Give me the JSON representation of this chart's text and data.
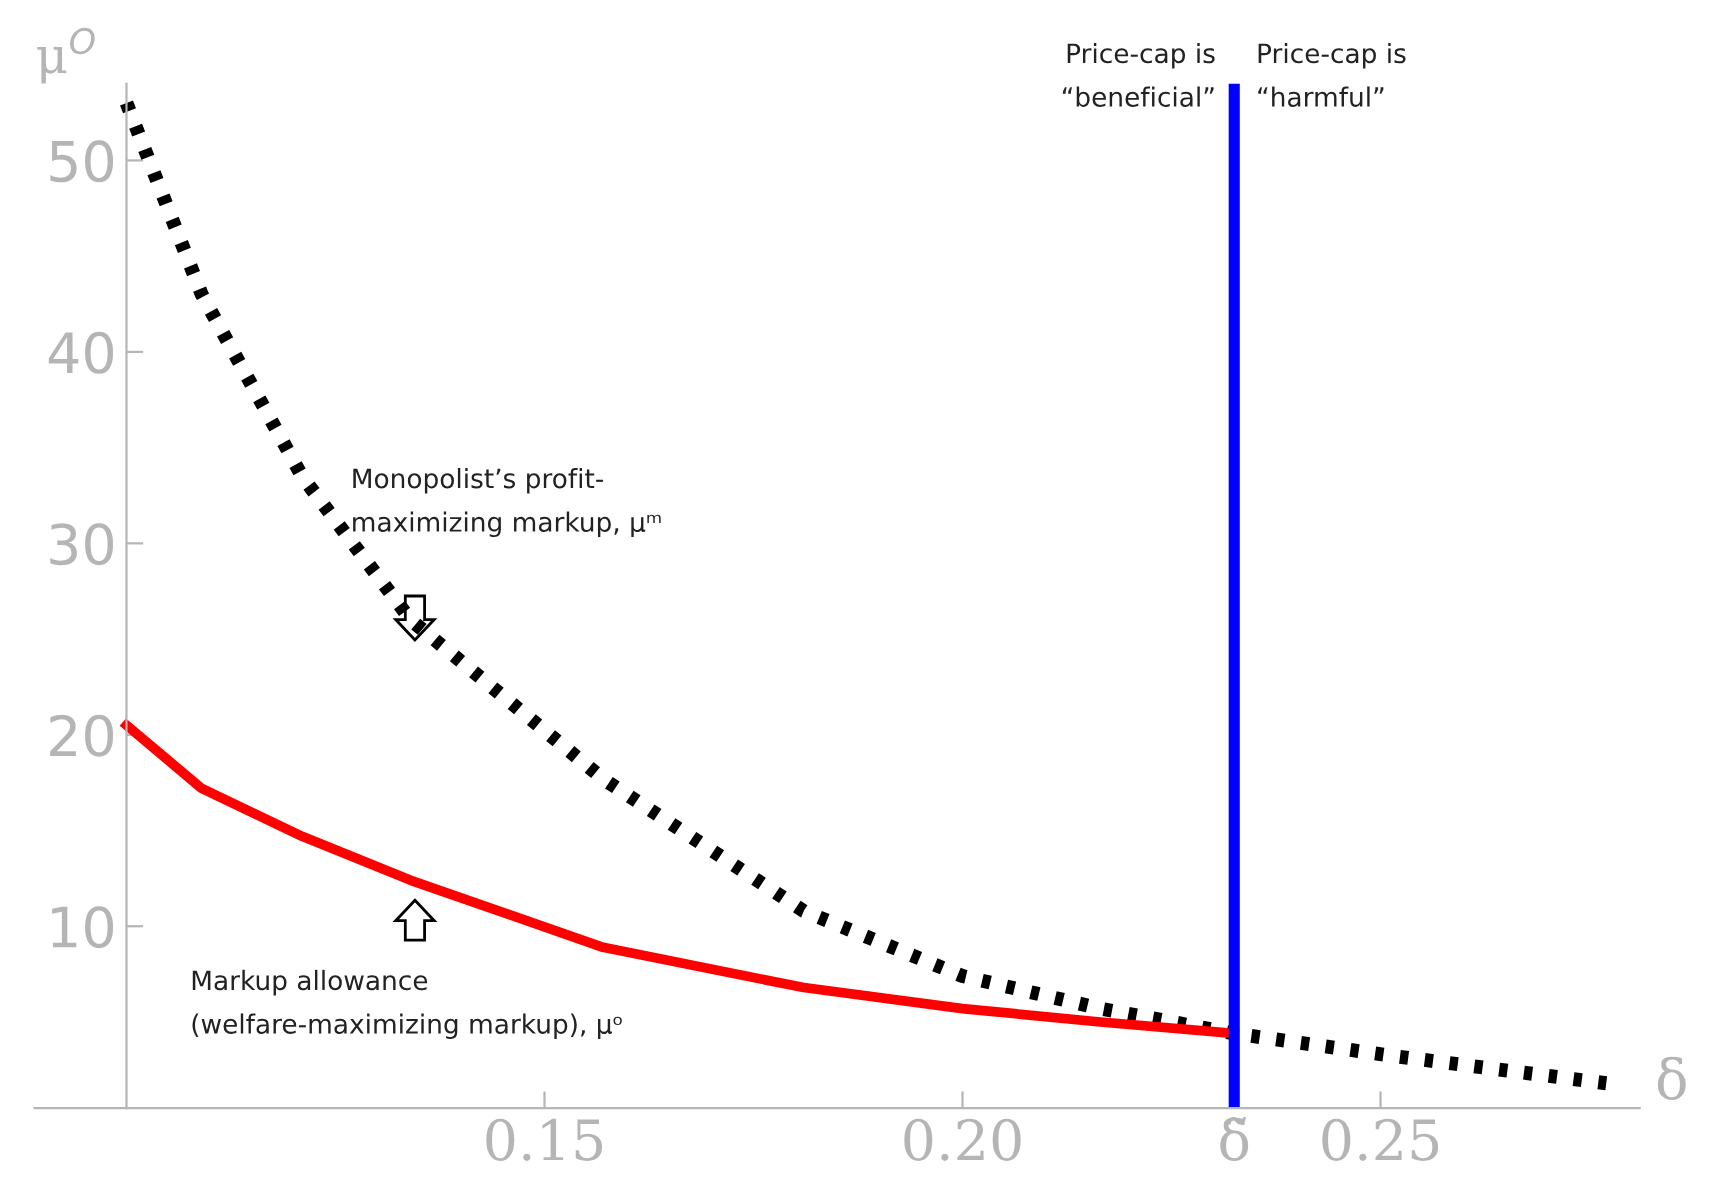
{
  "chart_data": {
    "type": "line",
    "xlabel": "δ",
    "ylabel": "μ$^{O}$",
    "xlim": [
      0.089,
      0.281
    ],
    "ylim": [
      0.5,
      54
    ],
    "xticks": [
      0.15,
      {
        "value": 0.2,
        "label": "0.20"
      },
      {
        "value": 0.2325,
        "label": "δ̃"
      },
      0.25
    ],
    "yticks": [
      10,
      20,
      30,
      40,
      50
    ],
    "grid": false,
    "legend": false,
    "series": [
      {
        "color": "#000000",
        "line_style": "dotted",
        "x": [
          0.1,
          0.109,
          0.121,
          0.134,
          0.157,
          0.181,
          0.2,
          0.2165,
          0.2325,
          0.252,
          0.277
        ],
        "values": [
          53,
          43,
          33.5,
          26,
          17.7,
          10.8,
          7.4,
          5.7,
          4.4,
          3.2,
          1.8
        ]
      },
      {
        "color": "#ff0000",
        "line_style": "solid",
        "x": [
          0.1,
          0.109,
          0.121,
          0.134,
          0.157,
          0.181,
          0.2,
          0.2165,
          0.2325
        ],
        "values": [
          20.5,
          17.2,
          14.7,
          12.4,
          8.9,
          6.8,
          5.7,
          5.0,
          4.4
        ]
      }
    ],
    "ref_lines": [
      {
        "axis": "x",
        "value": 0.2325,
        "color": "#0000ff",
        "line_style": "solid"
      }
    ],
    "annotations": [
      "Monopolist’s profit-\nmaximizing markup, μᵐ",
      "Markup allowance\n(welfare-maximizing markup), μᵒ",
      "Price-cap is\n“beneficial”",
      "Price-cap is\n“harmful”"
    ]
  }
}
